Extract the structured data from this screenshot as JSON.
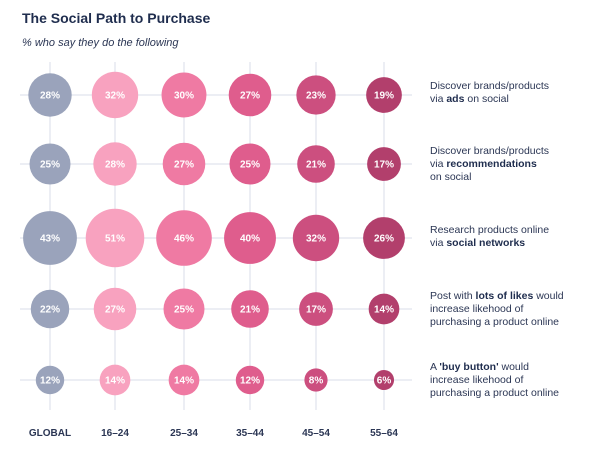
{
  "chart_data": {
    "type": "bubble-matrix",
    "title": "The Social Path to Purchase",
    "subtitle": "% who say they do the following",
    "categories": [
      "GLOBAL",
      "16–24",
      "25–34",
      "35–44",
      "45–54",
      "55–64"
    ],
    "rows": [
      {
        "label_parts": [
          {
            "text": "Discover brands/products",
            "bold": false,
            "br": true
          },
          {
            "text": "via ",
            "bold": false
          },
          {
            "text": "ads",
            "bold": true
          },
          {
            "text": " on social",
            "bold": false
          }
        ],
        "values": [
          28,
          32,
          30,
          27,
          23,
          19
        ]
      },
      {
        "label_parts": [
          {
            "text": "Discover brands/products",
            "bold": false,
            "br": true
          },
          {
            "text": "via ",
            "bold": false
          },
          {
            "text": "recommendations",
            "bold": true,
            "br": true
          },
          {
            "text": "on social",
            "bold": false
          }
        ],
        "values": [
          25,
          28,
          27,
          25,
          21,
          17
        ]
      },
      {
        "label_parts": [
          {
            "text": "Research products online",
            "bold": false,
            "br": true
          },
          {
            "text": "via ",
            "bold": false
          },
          {
            "text": "social networks",
            "bold": true
          }
        ],
        "values": [
          43,
          51,
          46,
          40,
          32,
          26
        ]
      },
      {
        "label_parts": [
          {
            "text": "Post with ",
            "bold": false
          },
          {
            "text": "lots of likes",
            "bold": true
          },
          {
            "text": " would",
            "bold": false,
            "br": true
          },
          {
            "text": "increase likehood of",
            "bold": false,
            "br": true
          },
          {
            "text": "purchasing a product online",
            "bold": false
          }
        ],
        "values": [
          22,
          27,
          25,
          21,
          17,
          14
        ]
      },
      {
        "label_parts": [
          {
            "text": "A ",
            "bold": false
          },
          {
            "text": "'buy button'",
            "bold": true
          },
          {
            "text": " would",
            "bold": false,
            "br": true
          },
          {
            "text": "increase likehood of",
            "bold": false,
            "br": true
          },
          {
            "text": "purchasing a product online",
            "bold": false
          }
        ],
        "values": [
          12,
          14,
          14,
          12,
          8,
          6
        ]
      }
    ],
    "value_suffix": "%",
    "colors": [
      "#9aa3bb",
      "#f8a2bf",
      "#ef7aa3",
      "#df5d8d",
      "#cc4f7f",
      "#b23f6c"
    ],
    "gridline_color": "#d9deea",
    "grid": true
  }
}
